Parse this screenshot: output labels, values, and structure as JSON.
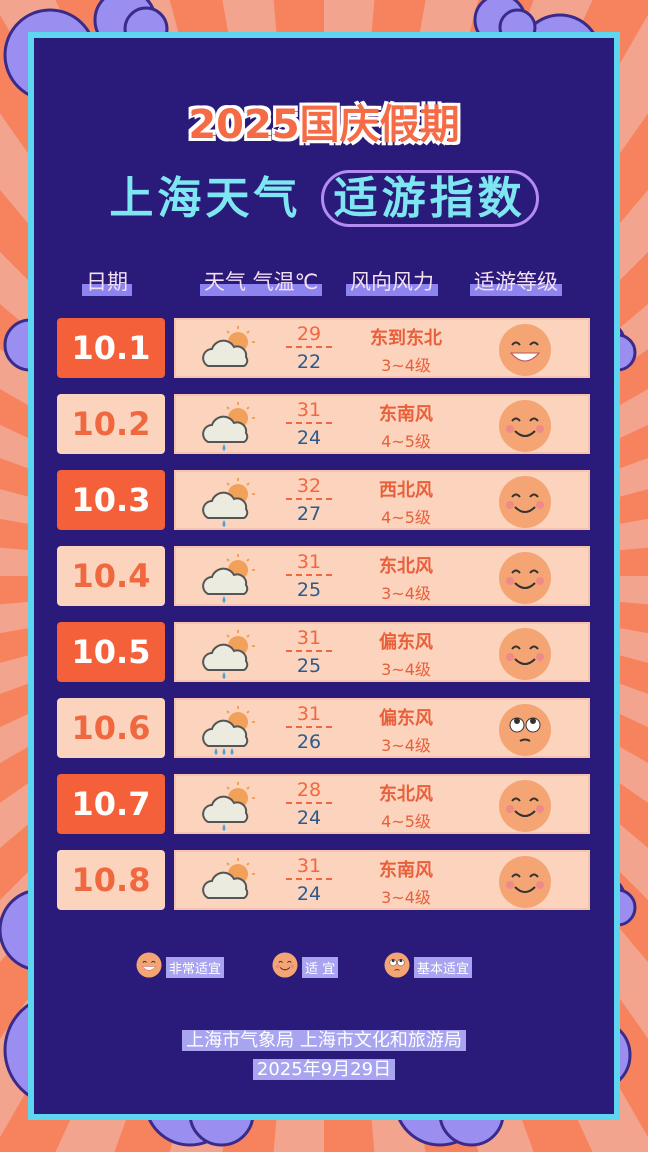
{
  "title_line1": "2025国庆假期",
  "title_line2_a": "上海天气",
  "title_line2_b": "适游指数",
  "headers": {
    "date": "日期",
    "weather_temp": "天气  气温℃",
    "wind": "风向风力",
    "level": "适游等级"
  },
  "rows": [
    {
      "date": "10.1",
      "weather": "partly-cloudy",
      "high": "29",
      "low": "22",
      "wind_dir": "东到东北",
      "wind_force": "3~4级",
      "level": "very-suitable"
    },
    {
      "date": "10.2",
      "weather": "cloudy-rain",
      "high": "31",
      "low": "24",
      "wind_dir": "东南风",
      "wind_force": "4~5级",
      "level": "suitable"
    },
    {
      "date": "10.3",
      "weather": "cloudy-rain",
      "high": "32",
      "low": "27",
      "wind_dir": "西北风",
      "wind_force": "4~5级",
      "level": "suitable"
    },
    {
      "date": "10.4",
      "weather": "cloudy-rain",
      "high": "31",
      "low": "25",
      "wind_dir": "东北风",
      "wind_force": "3~4级",
      "level": "suitable"
    },
    {
      "date": "10.5",
      "weather": "cloudy-rain",
      "high": "31",
      "low": "25",
      "wind_dir": "偏东风",
      "wind_force": "3~4级",
      "level": "suitable"
    },
    {
      "date": "10.6",
      "weather": "cloudy-heavy-rain",
      "high": "31",
      "low": "26",
      "wind_dir": "偏东风",
      "wind_force": "3~4级",
      "level": "basic"
    },
    {
      "date": "10.7",
      "weather": "cloudy-rain",
      "high": "28",
      "low": "24",
      "wind_dir": "东北风",
      "wind_force": "4~5级",
      "level": "suitable"
    },
    {
      "date": "10.8",
      "weather": "partly-cloudy",
      "high": "31",
      "low": "24",
      "wind_dir": "东南风",
      "wind_force": "3~4级",
      "level": "suitable"
    }
  ],
  "legend": [
    {
      "level": "very-suitable",
      "label": "非常适宜"
    },
    {
      "level": "suitable",
      "label": "适 宜"
    },
    {
      "level": "basic",
      "label": "基本适宜"
    }
  ],
  "footer": {
    "source": "上海市气象局 上海市文化和旅游局",
    "date": "2025年9月29日"
  },
  "colors": {
    "panel": "#2a1b7a",
    "border": "#5fd6f0",
    "accent": "#f4603a",
    "row": "#fcd3bd",
    "cloud": "#9a8ff0"
  }
}
